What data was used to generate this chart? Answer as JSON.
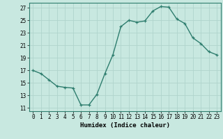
{
  "x": [
    0,
    1,
    2,
    3,
    4,
    5,
    6,
    7,
    8,
    9,
    10,
    11,
    12,
    13,
    14,
    15,
    16,
    17,
    18,
    19,
    20,
    21,
    22,
    23
  ],
  "y": [
    17,
    16.5,
    15.5,
    14.5,
    14.3,
    14.2,
    11.5,
    11.5,
    13.2,
    16.5,
    19.5,
    24.0,
    25.0,
    24.7,
    24.9,
    26.5,
    27.2,
    27.1,
    25.2,
    24.5,
    22.2,
    21.3,
    20.0,
    19.5
  ],
  "line_color": "#2e7d6e",
  "marker": "+",
  "marker_size": 3,
  "bg_color": "#c8e8e0",
  "grid_color": "#b0d4cc",
  "xlabel": "Humidex (Indice chaleur)",
  "ylim": [
    10.5,
    27.8
  ],
  "xlim": [
    -0.5,
    23.5
  ],
  "yticks": [
    11,
    13,
    15,
    17,
    19,
    21,
    23,
    25,
    27
  ],
  "xticks": [
    0,
    1,
    2,
    3,
    4,
    5,
    6,
    7,
    8,
    9,
    10,
    11,
    12,
    13,
    14,
    15,
    16,
    17,
    18,
    19,
    20,
    21,
    22,
    23
  ],
  "tick_fontsize": 5.5,
  "label_fontsize": 6.5,
  "line_width": 1.0
}
